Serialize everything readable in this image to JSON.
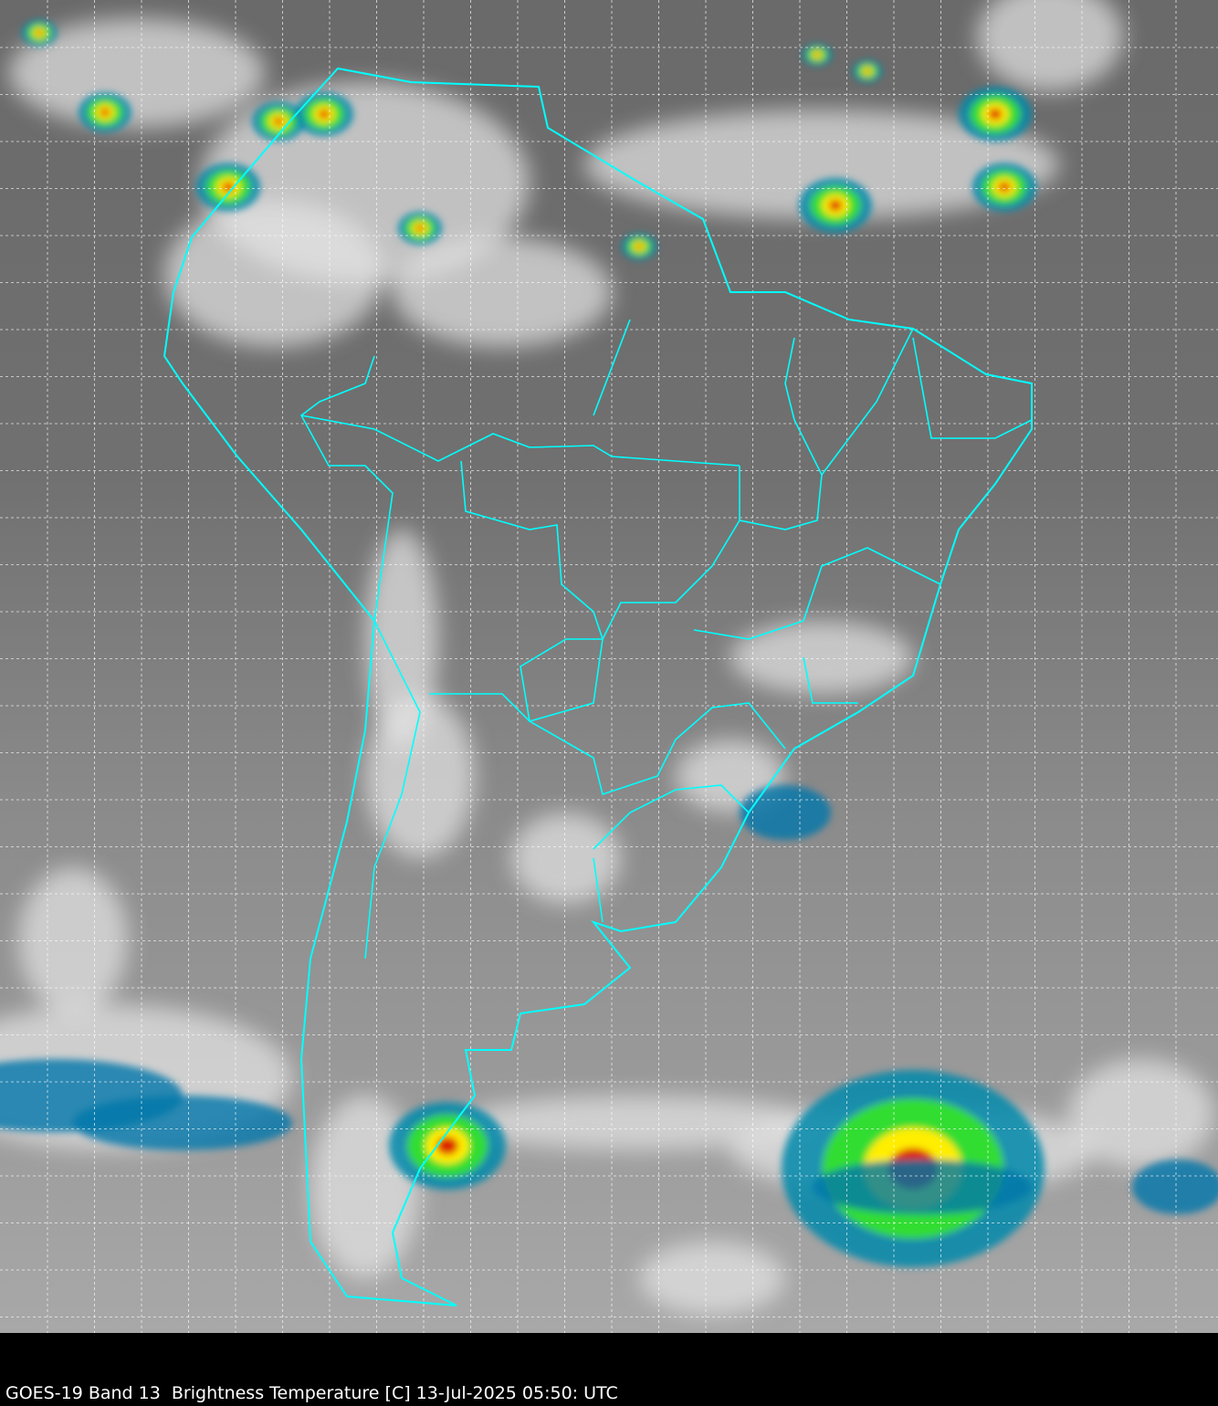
{
  "caption": "GOES-19 Band 13  Brightness Temperature [C] 13-Jul-2025 05:50: UTC",
  "colors": {
    "background": "#000000",
    "boundaries": "#00ffff",
    "grid": "#ffffff",
    "cloud_gray": "#7a7a7a",
    "cold_cloud_cyan": "#00c8e6",
    "cold_cloud_green": "#33dd33",
    "cold_cloud_yellow": "#ffee00",
    "cold_cloud_red": "#dd2200"
  }
}
